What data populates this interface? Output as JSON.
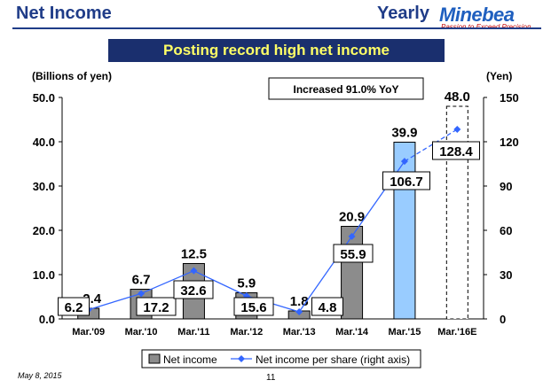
{
  "header": {
    "title": "Net Income",
    "period": "Yearly",
    "brand": "Minebea",
    "tagline": "Passion to Exceed Precision"
  },
  "banner": "Posting record high net income",
  "footer": {
    "date": "May 8, 2015",
    "page": "11"
  },
  "colors": {
    "navy": "#1a2f6e",
    "bar_gray": "#8c8c8c",
    "bar_highlight": "#99ccff",
    "line_blue": "#3366ff",
    "banner_text": "#ffff66"
  },
  "chart_data": {
    "type": "bar",
    "categories": [
      "Mar.'09",
      "Mar.'10",
      "Mar.'11",
      "Mar.'12",
      "Mar.'13",
      "Mar.'14",
      "Mar.'15",
      "Mar.'16E"
    ],
    "series": [
      {
        "name": "Net income",
        "type": "bar",
        "axis": "left",
        "values": [
          2.4,
          6.7,
          12.5,
          5.9,
          1.8,
          20.9,
          39.9,
          48.0
        ]
      },
      {
        "name": "Net income per share (right axis)",
        "type": "line",
        "axis": "right",
        "values": [
          6.2,
          17.2,
          32.6,
          15.6,
          4.8,
          55.9,
          106.7,
          128.4
        ]
      }
    ],
    "bar_labels": [
      "2.4",
      "6.7",
      "12.5",
      "5.9",
      "1.8",
      "20.9",
      "39.9",
      "48.0"
    ],
    "line_labels": [
      "6.2",
      "17.2",
      "32.6",
      "15.6",
      "4.8",
      "55.9",
      "106.7",
      "128.4"
    ],
    "ylabel_left": "(Billions of yen)",
    "ylabel_right": "(Yen)",
    "ylim_left": [
      0,
      50
    ],
    "ylim_right": [
      0,
      150
    ],
    "left_ticks": [
      "0.0",
      "10.0",
      "20.0",
      "30.0",
      "40.0",
      "50.0"
    ],
    "right_ticks": [
      "0",
      "30",
      "60",
      "90",
      "120",
      "150"
    ],
    "annotation": "Increased  91.0%  YoY",
    "legend_position": "bottom",
    "grid": false
  }
}
